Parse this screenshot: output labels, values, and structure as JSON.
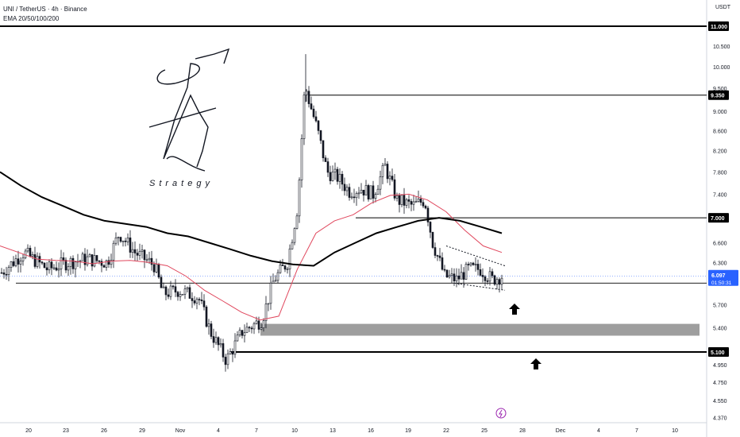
{
  "header": {
    "symbol": "UNI / TetherUS · 4h · Binance",
    "indicator": "EMA 20/50/100/200",
    "quote_currency": "USDT"
  },
  "price_axis": {
    "ticks": [
      "10.500",
      "10.000",
      "9.500",
      "9.000",
      "8.600",
      "8.200",
      "7.800",
      "7.400",
      "6.600",
      "6.300",
      "5.700",
      "5.400",
      "5.100",
      "4.950",
      "4.750",
      "4.550",
      "4.370"
    ],
    "key_levels": [
      "11.000",
      "9.350",
      "7.000",
      "5.100"
    ],
    "current_price": "6.097",
    "countdown": "01:50:31"
  },
  "time_axis": {
    "labels": [
      "20",
      "23",
      "26",
      "29",
      "Nov",
      "4",
      "7",
      "10",
      "13",
      "16",
      "19",
      "22",
      "25",
      "28",
      "Dec",
      "4",
      "7",
      "10"
    ]
  },
  "logo": {
    "text": "Strategy"
  },
  "colors": {
    "candle": "#131722",
    "ema_red": "#e0475d",
    "ema_black": "#000000",
    "level": "#000000",
    "zone": "#9e9e9e",
    "price_tag": "#2962ff",
    "accent": "#9c27b0"
  },
  "chart_data": {
    "type": "candlestick",
    "title": "UNI / TetherUS · 4h · Binance",
    "y_scale": "log",
    "ylim": [
      4.37,
      11.3
    ],
    "x_labels": [
      "20",
      "23",
      "26",
      "29",
      "Nov",
      "4",
      "7",
      "10",
      "13",
      "16",
      "19",
      "22",
      "25",
      "28",
      "Dec",
      "4",
      "7",
      "10"
    ],
    "horizontal_levels": [
      11.0,
      9.35,
      7.0,
      5.1
    ],
    "support_zone": [
      5.3,
      5.45
    ],
    "current_price": 6.097,
    "series": [
      {
        "name": "EMA 20/50/100/200",
        "kind": "ema",
        "color": "#e0475d",
        "values": [
          6.55,
          6.45,
          6.35,
          6.33,
          6.32,
          6.28,
          6.32,
          6.33,
          6.3,
          6.25,
          6.1,
          5.9,
          5.75,
          5.6,
          5.5,
          5.55,
          6.2,
          6.75,
          6.95,
          7.05,
          7.25,
          7.38,
          7.4,
          7.3,
          7.1,
          6.8,
          6.55,
          6.45
        ]
      },
      {
        "name": "EMA 20/50/100/200",
        "kind": "ema",
        "color": "#000000",
        "values": [
          7.8,
          7.55,
          7.35,
          7.2,
          7.05,
          6.95,
          6.9,
          6.85,
          6.75,
          6.7,
          6.6,
          6.5,
          6.4,
          6.32,
          6.27,
          6.25,
          6.45,
          6.6,
          6.75,
          6.85,
          6.95,
          7.0,
          6.95,
          6.85,
          6.75
        ]
      }
    ]
  }
}
